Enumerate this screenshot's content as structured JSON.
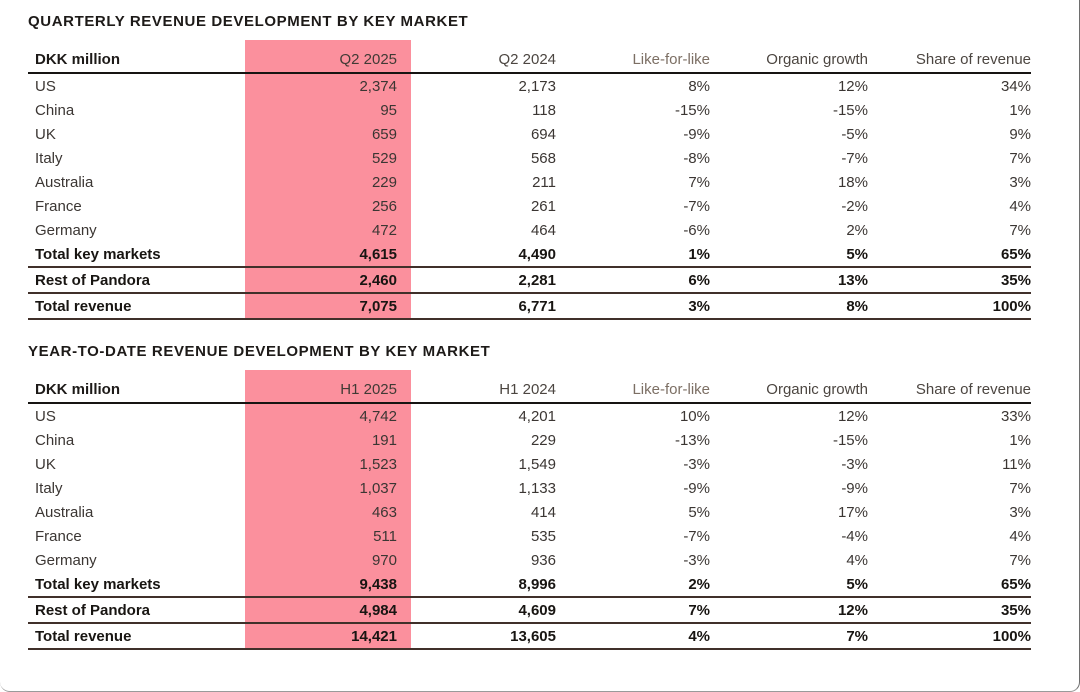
{
  "colors": {
    "highlight": "#FB909D",
    "total_rule": "#40302A",
    "header_rule": "#161412"
  },
  "tables": [
    {
      "title": "QUARTERLY REVENUE DEVELOPMENT BY KEY MARKET",
      "columns": [
        "DKK million",
        "Q2 2025",
        "Q2 2024",
        "Like-for-like",
        "Organic growth",
        "Share of revenue"
      ],
      "rows": [
        {
          "label": "US",
          "values": [
            "2,374",
            "2,173",
            "8%",
            "12%",
            "34%"
          ],
          "bold": false
        },
        {
          "label": "China",
          "values": [
            "95",
            "118",
            "-15%",
            "-15%",
            "1%"
          ],
          "bold": false
        },
        {
          "label": "UK",
          "values": [
            "659",
            "694",
            "-9%",
            "-5%",
            "9%"
          ],
          "bold": false
        },
        {
          "label": "Italy",
          "values": [
            "529",
            "568",
            "-8%",
            "-7%",
            "7%"
          ],
          "bold": false
        },
        {
          "label": "Australia",
          "values": [
            "229",
            "211",
            "7%",
            "18%",
            "3%"
          ],
          "bold": false
        },
        {
          "label": "France",
          "values": [
            "256",
            "261",
            "-7%",
            "-2%",
            "4%"
          ],
          "bold": false
        },
        {
          "label": "Germany",
          "values": [
            "472",
            "464",
            "-6%",
            "2%",
            "7%"
          ],
          "bold": false
        },
        {
          "label": "Total key markets",
          "values": [
            "4,615",
            "4,490",
            "1%",
            "5%",
            "65%"
          ],
          "bold": true
        },
        {
          "label": "Rest of Pandora",
          "values": [
            "2,460",
            "2,281",
            "6%",
            "13%",
            "35%"
          ],
          "bold": true
        },
        {
          "label": "Total revenue",
          "values": [
            "7,075",
            "6,771",
            "3%",
            "8%",
            "100%"
          ],
          "bold": true
        }
      ]
    },
    {
      "title": "YEAR-TO-DATE REVENUE DEVELOPMENT BY KEY MARKET",
      "columns": [
        "DKK million",
        "H1 2025",
        "H1 2024",
        "Like-for-like",
        "Organic growth",
        "Share of revenue"
      ],
      "rows": [
        {
          "label": "US",
          "values": [
            "4,742",
            "4,201",
            "10%",
            "12%",
            "33%"
          ],
          "bold": false
        },
        {
          "label": "China",
          "values": [
            "191",
            "229",
            "-13%",
            "-15%",
            "1%"
          ],
          "bold": false
        },
        {
          "label": "UK",
          "values": [
            "1,523",
            "1,549",
            "-3%",
            "-3%",
            "11%"
          ],
          "bold": false
        },
        {
          "label": "Italy",
          "values": [
            "1,037",
            "1,133",
            "-9%",
            "-9%",
            "7%"
          ],
          "bold": false
        },
        {
          "label": "Australia",
          "values": [
            "463",
            "414",
            "5%",
            "17%",
            "3%"
          ],
          "bold": false
        },
        {
          "label": "France",
          "values": [
            "511",
            "535",
            "-7%",
            "-4%",
            "4%"
          ],
          "bold": false
        },
        {
          "label": "Germany",
          "values": [
            "970",
            "936",
            "-3%",
            "4%",
            "7%"
          ],
          "bold": false
        },
        {
          "label": "Total key markets",
          "values": [
            "9,438",
            "8,996",
            "2%",
            "5%",
            "65%"
          ],
          "bold": true
        },
        {
          "label": "Rest of Pandora",
          "values": [
            "4,984",
            "4,609",
            "7%",
            "12%",
            "35%"
          ],
          "bold": true
        },
        {
          "label": "Total revenue",
          "values": [
            "14,421",
            "13,605",
            "4%",
            "7%",
            "100%"
          ],
          "bold": true
        }
      ]
    }
  ]
}
